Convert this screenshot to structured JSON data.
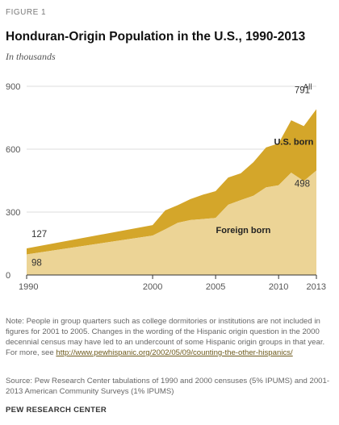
{
  "figure_label": "FIGURE 1",
  "title": "Honduran-Origin  Population in the U.S., 1990-2013",
  "subtitle": "In thousands",
  "note": {
    "text": "Note: People in group quarters such as college dormitories or institutions are not included in figures for 2001 to 2005.  Changes in the wording of the Hispanic origin question in the 2000 decennial census may have led to an undercount of some Hispanic origin groups in that year. For more, see ",
    "link": "http://www.pewhispanic.org/2002/05/09/counting-the-other-hispanics/"
  },
  "source": "Source: Pew Research Center tabulations of 1990 and 2000 censuses (5% IPUMS) and 2001-2013 American Community Surveys (1% IPUMS)",
  "org": "PEW RESEARCH CENTER",
  "colors": {
    "us_born": "#d4a62a",
    "foreign_born": "#ecd496",
    "axis": "#333333",
    "grid": "#dddddd"
  },
  "chart_data": {
    "type": "area",
    "stacked": true,
    "x": [
      1990,
      2000,
      2001,
      2002,
      2003,
      2004,
      2005,
      2006,
      2007,
      2008,
      2009,
      2010,
      2011,
      2012,
      2013
    ],
    "series": [
      {
        "name": "Foreign born",
        "values": [
          98,
          188,
          218,
          249,
          262,
          267,
          272,
          335,
          357,
          378,
          418,
          428,
          488,
          448,
          498
        ]
      },
      {
        "name": "U.S. born",
        "values": [
          29,
          50,
          90,
          84,
          100,
          116,
          128,
          130,
          128,
          160,
          190,
          200,
          250,
          262,
          293
        ]
      }
    ],
    "total_name": "All",
    "ylim": [
      0,
      900
    ],
    "yticks": [
      0,
      300,
      600,
      900
    ],
    "xticks": [
      1990,
      2000,
      2005,
      2010,
      2013
    ],
    "annotations": [
      {
        "text": "127",
        "x": 1990,
        "y": 127
      },
      {
        "text": "98",
        "x": 1990,
        "y": 98
      },
      {
        "text": "791",
        "x": 2013,
        "y": 791
      },
      {
        "text": "498",
        "x": 2013,
        "y": 498
      }
    ],
    "xlabel": "",
    "ylabel": "",
    "grid": true
  }
}
